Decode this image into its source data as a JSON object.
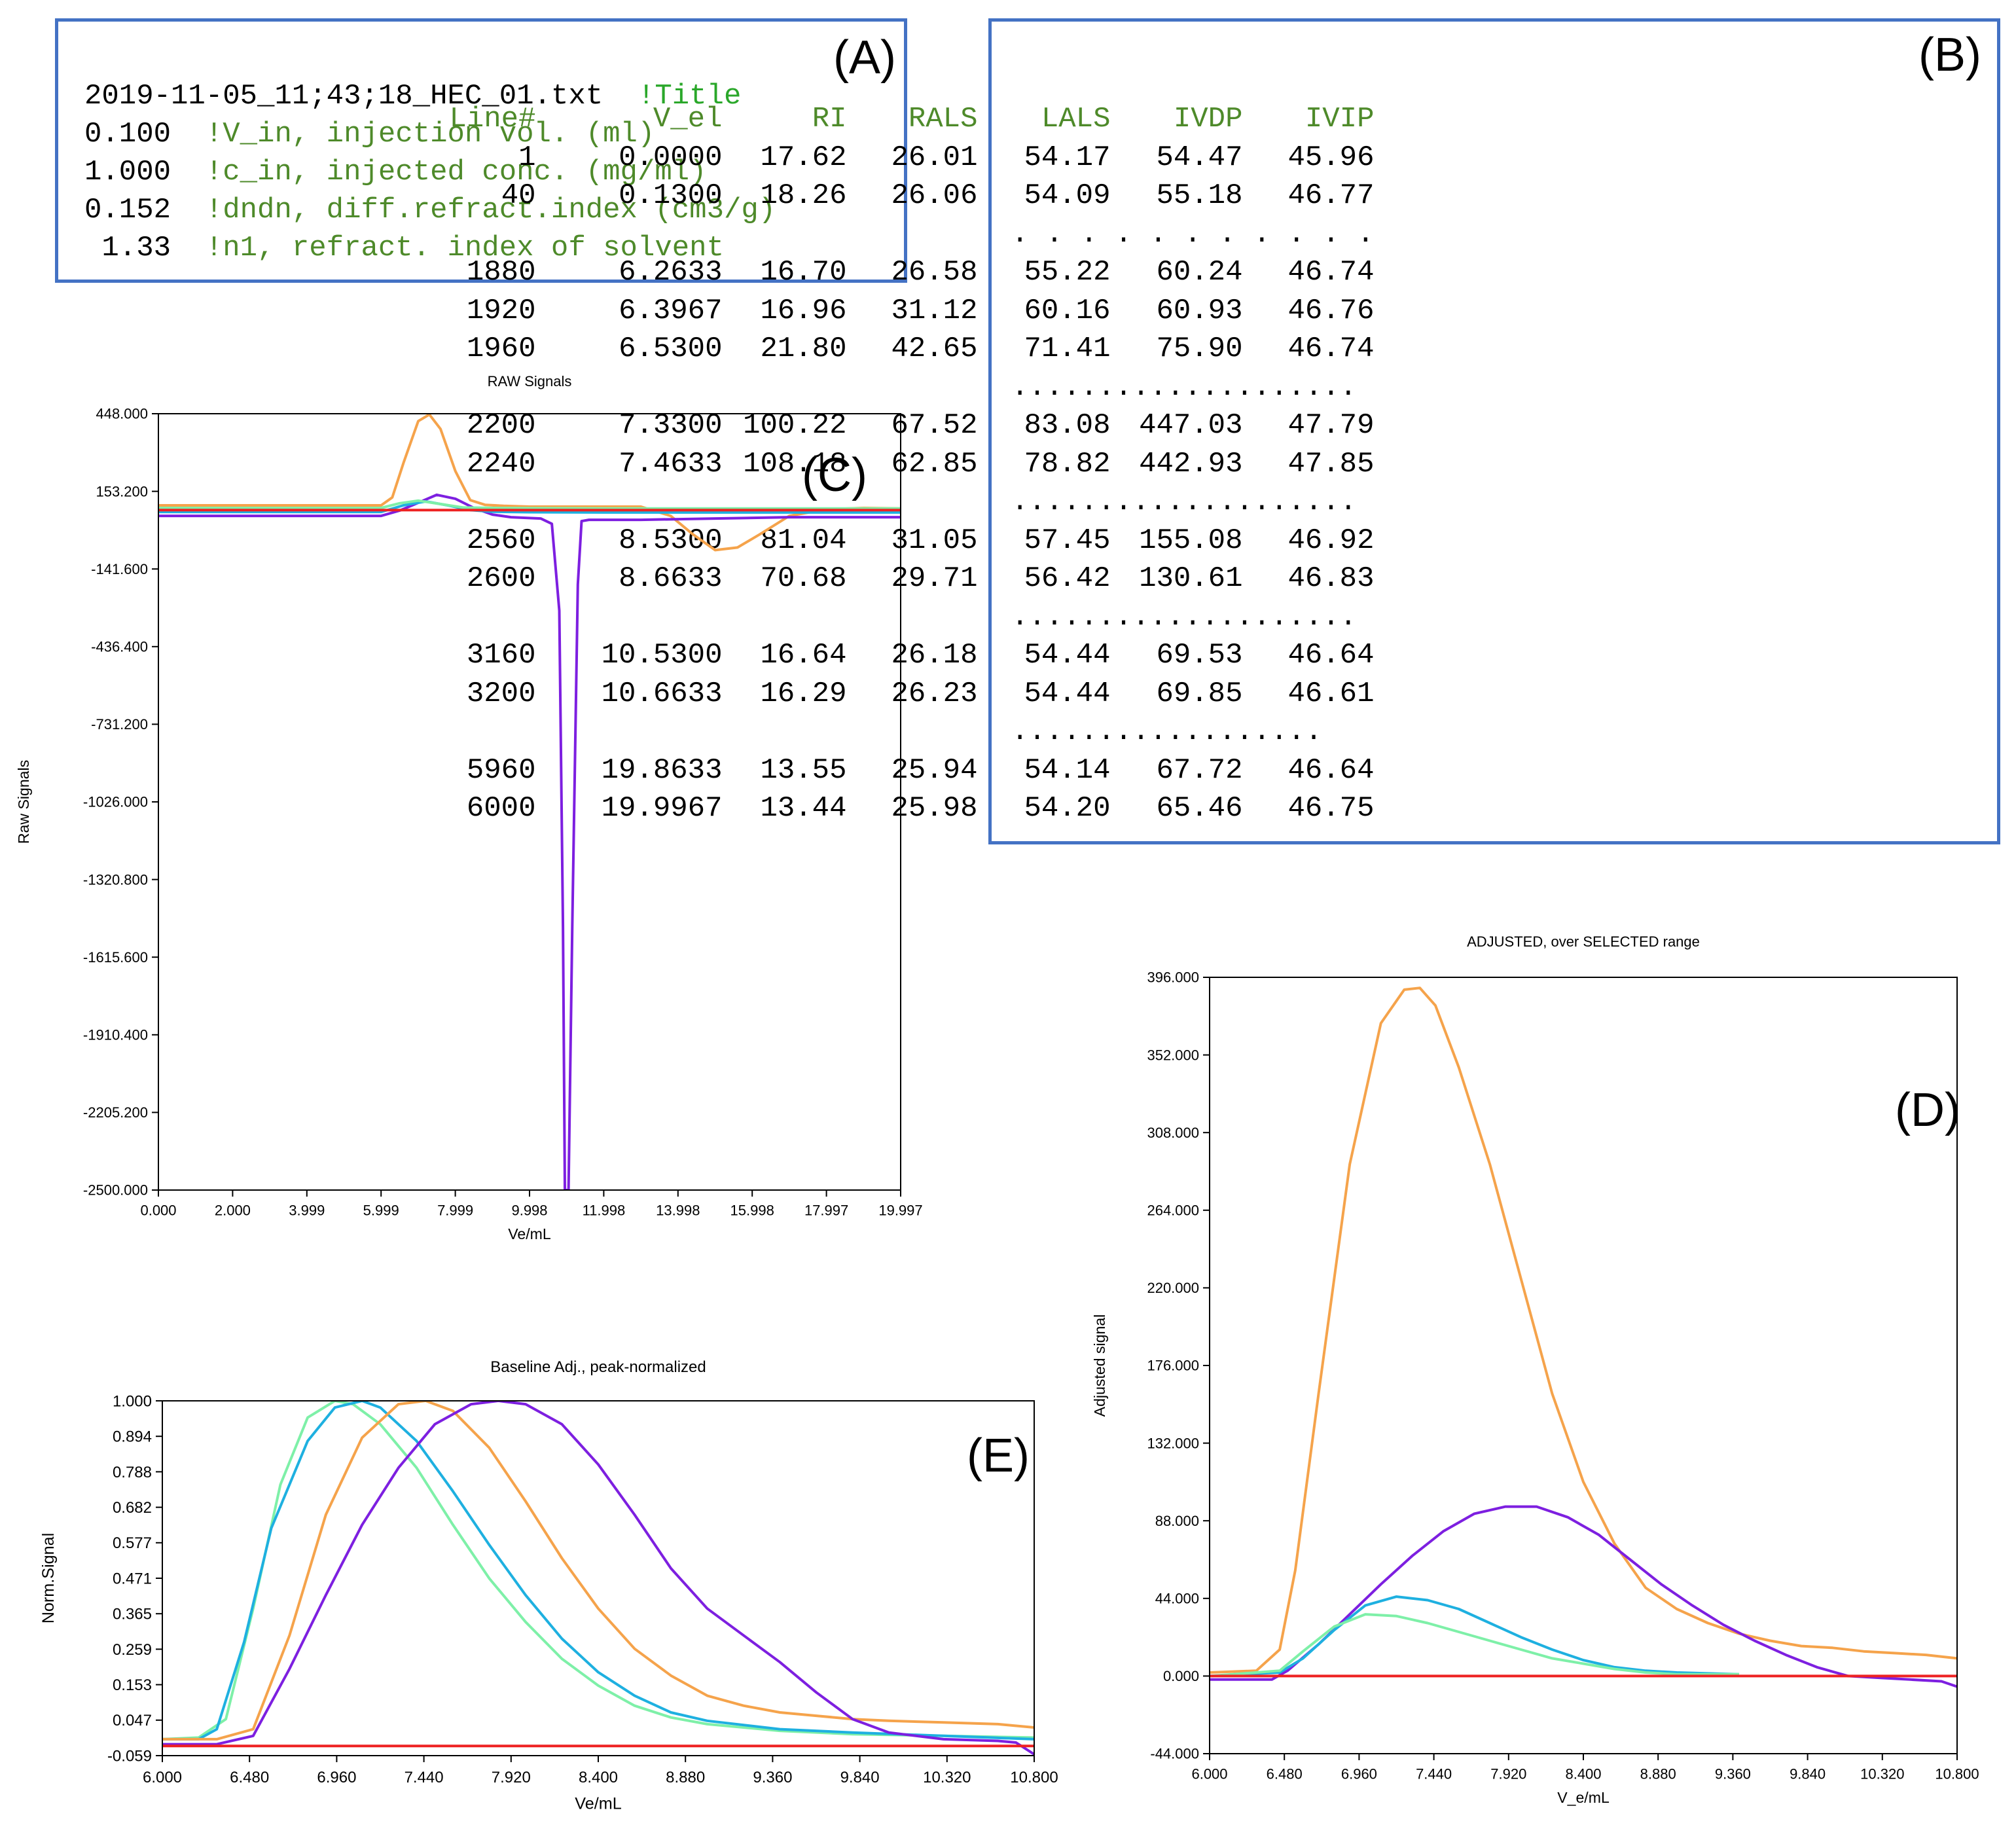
{
  "panelA": {
    "letter": "(A)",
    "lines": [
      {
        "value": "2019-11-05_11;43;18_HEC_01.txt",
        "comment": "!Title"
      },
      {
        "value": "0.100",
        "comment": "!V_in, injection vol. (ml)"
      },
      {
        "value": "1.000",
        "comment": "!c_in, injected conc. (mg/ml)"
      },
      {
        "value": "0.152",
        "comment": "!dndn, diff.refract.index (cm3/g)"
      },
      {
        "value": " 1.33",
        "comment": "!n1, refract. index of solvent"
      }
    ]
  },
  "panelB": {
    "letter": "(B)",
    "columns": [
      "Line#",
      "V_el",
      "RI",
      "RALS",
      "LALS",
      "IVDP",
      "IVIP"
    ],
    "rows": [
      [
        "1",
        "0.0000",
        "17.62",
        "26.01",
        "54.17",
        "54.47",
        "45.96"
      ],
      [
        "40",
        "0.1300",
        "18.26",
        "26.06",
        "54.09",
        "55.18",
        "46.77"
      ],
      ". . . . . . . . . . .",
      [
        "1880",
        "6.2633",
        "16.70",
        "26.58",
        "55.22",
        "60.24",
        "46.74"
      ],
      [
        "1920",
        "6.3967",
        "16.96",
        "31.12",
        "60.16",
        "60.93",
        "46.76"
      ],
      [
        "1960",
        "6.5300",
        "21.80",
        "42.65",
        "71.41",
        "75.90",
        "46.74"
      ],
      "....................",
      [
        "2200",
        "7.3300",
        "100.22",
        "67.52",
        "83.08",
        "447.03",
        "47.79"
      ],
      [
        "2240",
        "7.4633",
        "108.18",
        "62.85",
        "78.82",
        "442.93",
        "47.85"
      ],
      "....................",
      [
        "2560",
        "8.5300",
        "81.04",
        "31.05",
        "57.45",
        "155.08",
        "46.92"
      ],
      [
        "2600",
        "8.6633",
        "70.68",
        "29.71",
        "56.42",
        "130.61",
        "46.83"
      ],
      "....................",
      [
        "3160",
        "10.5300",
        "16.64",
        "26.18",
        "54.44",
        "69.53",
        "46.64"
      ],
      [
        "3200",
        "10.6633",
        "16.29",
        "26.23",
        "54.44",
        "69.85",
        "46.61"
      ],
      "..................",
      [
        "5960",
        "19.8633",
        "13.55",
        "25.94",
        "54.14",
        "67.72",
        "46.64"
      ],
      [
        "6000",
        "19.9967",
        "13.44",
        "25.98",
        "54.20",
        "65.46",
        "46.75"
      ]
    ]
  },
  "colors": {
    "orange": "#f5a34b",
    "purple": "#7d1fe0",
    "cyan": "#1eb0e0",
    "mint": "#7ef0a8",
    "red": "#ee2222",
    "box_border": "#4472c4",
    "header_green": "#4e8a2a"
  },
  "chart_data": [
    {
      "id": "C",
      "letter": "(C)",
      "type": "line",
      "title": "RAW Signals",
      "xlabel": "Ve/mL",
      "ylabel": "Raw Signals",
      "xlim": [
        0,
        19.997
      ],
      "ylim": [
        -2500,
        448
      ],
      "xticks": [
        "0.000",
        "2.000",
        "3.999",
        "5.999",
        "7.999",
        "9.998",
        "11.998",
        "13.998",
        "15.998",
        "17.997",
        "19.997"
      ],
      "yticks": [
        "448.000",
        "153.200",
        "-141.600",
        "-436.400",
        "-731.200",
        "-1026.000",
        "-1320.800",
        "-1615.600",
        "-1910.400",
        "-2205.200",
        "-2500.000"
      ],
      "series": [
        {
          "color": "orange",
          "x": [
            0,
            6,
            6.3,
            6.6,
            7.0,
            7.3,
            7.6,
            8.0,
            8.4,
            8.8,
            9.3,
            10,
            11,
            12,
            13,
            13.8,
            14.4,
            15,
            15.6,
            16.2,
            17,
            18,
            19,
            19.997
          ],
          "y": [
            100,
            100,
            130,
            260,
            420,
            445,
            390,
            230,
            120,
            102,
            98,
            95,
            95,
            95,
            95,
            60,
            -10,
            -70,
            -60,
            -10,
            60,
            85,
            90,
            88
          ]
        },
        {
          "color": "purple",
          "x": [
            0,
            6,
            6.5,
            7.0,
            7.5,
            8.0,
            8.5,
            9.0,
            9.5,
            10.3,
            10.6,
            10.8,
            10.9,
            10.95,
            11.05,
            11.15,
            11.3,
            11.4,
            11.6,
            12,
            13,
            15,
            17,
            19.997
          ],
          "y": [
            60,
            60,
            80,
            110,
            140,
            125,
            90,
            65,
            55,
            50,
            30,
            -300,
            -1500,
            -2500,
            -2500,
            -1500,
            -200,
            40,
            45,
            45,
            45,
            50,
            55,
            55
          ]
        },
        {
          "color": "cyan",
          "x": [
            0,
            6,
            6.6,
            7.2,
            7.8,
            8.4,
            9,
            10,
            12,
            15,
            19.997
          ],
          "y": [
            75,
            75,
            100,
            115,
            100,
            82,
            76,
            74,
            73,
            73,
            73
          ]
        },
        {
          "color": "mint",
          "x": [
            0,
            6,
            6.5,
            7.0,
            7.6,
            8.2,
            9,
            10,
            12,
            15,
            19.997
          ],
          "y": [
            90,
            90,
            108,
            118,
            105,
            92,
            90,
            89,
            88,
            88,
            88
          ]
        },
        {
          "color": "red",
          "x": [
            0,
            19.997
          ],
          "y": [
            82,
            82
          ]
        }
      ]
    },
    {
      "id": "D",
      "letter": "(D)",
      "type": "line",
      "title": "ADJUSTED, over SELECTED range",
      "xlabel": "V_e/mL",
      "ylabel": "Adjusted signal",
      "xlim": [
        6.0,
        10.8
      ],
      "ylim": [
        -44,
        396
      ],
      "xticks": [
        "6.000",
        "6.480",
        "6.960",
        "7.440",
        "7.920",
        "8.400",
        "8.880",
        "9.360",
        "9.840",
        "10.320",
        "10.800"
      ],
      "yticks": [
        "396.000",
        "352.000",
        "308.000",
        "264.000",
        "220.000",
        "176.000",
        "132.000",
        "88.000",
        "44.000",
        "0.000",
        "-44.000"
      ],
      "series": [
        {
          "color": "orange",
          "x": [
            6.0,
            6.3,
            6.45,
            6.55,
            6.7,
            6.9,
            7.1,
            7.25,
            7.35,
            7.45,
            7.6,
            7.8,
            8.0,
            8.2,
            8.4,
            8.6,
            8.8,
            9.0,
            9.2,
            9.4,
            9.6,
            9.8,
            10.0,
            10.2,
            10.4,
            10.6,
            10.8
          ],
          "y": [
            2,
            3,
            15,
            60,
            160,
            290,
            370,
            389,
            390,
            380,
            345,
            290,
            225,
            160,
            110,
            75,
            50,
            38,
            30,
            24,
            20,
            17,
            16,
            14,
            13,
            12,
            10
          ]
        },
        {
          "color": "purple",
          "x": [
            6.0,
            6.4,
            6.5,
            6.7,
            6.9,
            7.1,
            7.3,
            7.5,
            7.7,
            7.9,
            8.1,
            8.3,
            8.5,
            8.7,
            8.9,
            9.1,
            9.3,
            9.5,
            9.7,
            9.9,
            10.1,
            10.3,
            10.5,
            10.7,
            10.8
          ],
          "y": [
            -2,
            -2,
            3,
            18,
            35,
            52,
            68,
            82,
            92,
            96,
            96,
            90,
            80,
            66,
            52,
            40,
            29,
            20,
            12,
            5,
            0,
            -1,
            -2,
            -3,
            -6
          ]
        },
        {
          "color": "cyan",
          "x": [
            6.0,
            6.45,
            6.6,
            6.8,
            7.0,
            7.2,
            7.4,
            7.6,
            7.8,
            8.0,
            8.2,
            8.4,
            8.6,
            8.8,
            9.0,
            9.4
          ],
          "y": [
            0,
            2,
            10,
            26,
            40,
            45,
            43,
            38,
            30,
            22,
            15,
            9,
            5,
            3,
            2,
            1
          ]
        },
        {
          "color": "mint",
          "x": [
            6.0,
            6.45,
            6.6,
            6.8,
            7.0,
            7.2,
            7.4,
            7.6,
            7.8,
            8.0,
            8.2,
            8.4,
            8.6,
            8.8,
            9.0,
            9.4
          ],
          "y": [
            0,
            3,
            14,
            28,
            35,
            34,
            30,
            25,
            20,
            15,
            10,
            7,
            4,
            2,
            1,
            1
          ]
        },
        {
          "color": "red",
          "x": [
            6.0,
            10.8
          ],
          "y": [
            0,
            0
          ]
        }
      ]
    },
    {
      "id": "E",
      "letter": "(E)",
      "type": "line",
      "title": "Baseline Adj., peak-normalized",
      "xlabel": "Ve/mL",
      "ylabel": "Norm.Signal",
      "xlim": [
        6.0,
        10.8
      ],
      "ylim": [
        -0.059,
        1.0
      ],
      "xticks": [
        "6.000",
        "6.480",
        "6.960",
        "7.440",
        "7.920",
        "8.400",
        "8.880",
        "9.360",
        "9.840",
        "10.320",
        "10.800"
      ],
      "yticks": [
        "1.000",
        "0.894",
        "0.788",
        "0.682",
        "0.577",
        "0.471",
        "0.365",
        "0.259",
        "0.153",
        "0.047",
        "-0.059"
      ],
      "series": [
        {
          "color": "mint",
          "x": [
            6.0,
            6.2,
            6.35,
            6.5,
            6.65,
            6.8,
            6.95,
            7.05,
            7.2,
            7.4,
            7.6,
            7.8,
            8.0,
            8.2,
            8.4,
            8.6,
            8.8,
            9.0,
            9.4,
            9.8,
            10.3,
            10.8
          ],
          "y": [
            -0.01,
            -0.005,
            0.05,
            0.38,
            0.75,
            0.95,
            1.0,
            0.99,
            0.93,
            0.8,
            0.63,
            0.47,
            0.34,
            0.23,
            0.15,
            0.09,
            0.055,
            0.035,
            0.015,
            0.005,
            0.0,
            -0.005
          ]
        },
        {
          "color": "cyan",
          "x": [
            6.0,
            6.2,
            6.3,
            6.45,
            6.6,
            6.8,
            6.95,
            7.1,
            7.2,
            7.4,
            7.6,
            7.8,
            8.0,
            8.2,
            8.4,
            8.6,
            8.8,
            9.0,
            9.4,
            9.8,
            10.3,
            10.8
          ],
          "y": [
            -0.01,
            -0.01,
            0.02,
            0.28,
            0.62,
            0.88,
            0.98,
            1.0,
            0.98,
            0.88,
            0.73,
            0.57,
            0.42,
            0.29,
            0.19,
            0.12,
            0.07,
            0.045,
            0.02,
            0.01,
            0.0,
            -0.01
          ]
        },
        {
          "color": "orange",
          "x": [
            6.0,
            6.3,
            6.5,
            6.7,
            6.9,
            7.1,
            7.3,
            7.45,
            7.6,
            7.8,
            8.0,
            8.2,
            8.4,
            8.6,
            8.8,
            9.0,
            9.2,
            9.4,
            9.6,
            9.8,
            10.0,
            10.3,
            10.6,
            10.8
          ],
          "y": [
            -0.01,
            -0.01,
            0.02,
            0.3,
            0.66,
            0.89,
            0.99,
            1.0,
            0.97,
            0.86,
            0.7,
            0.53,
            0.38,
            0.26,
            0.18,
            0.12,
            0.09,
            0.07,
            0.06,
            0.05,
            0.045,
            0.04,
            0.035,
            0.025
          ]
        },
        {
          "color": "purple",
          "x": [
            6.0,
            6.3,
            6.5,
            6.7,
            6.9,
            7.1,
            7.3,
            7.5,
            7.7,
            7.85,
            8.0,
            8.2,
            8.4,
            8.6,
            8.8,
            9.0,
            9.2,
            9.4,
            9.6,
            9.8,
            10.0,
            10.3,
            10.6,
            10.7,
            10.8
          ],
          "y": [
            -0.025,
            -0.025,
            0.0,
            0.2,
            0.42,
            0.63,
            0.8,
            0.93,
            0.99,
            1.0,
            0.99,
            0.93,
            0.81,
            0.66,
            0.5,
            0.38,
            0.3,
            0.22,
            0.13,
            0.05,
            0.01,
            -0.01,
            -0.015,
            -0.02,
            -0.055
          ]
        },
        {
          "color": "red",
          "x": [
            6.0,
            10.8
          ],
          "y": [
            -0.03,
            -0.03
          ]
        }
      ]
    }
  ]
}
